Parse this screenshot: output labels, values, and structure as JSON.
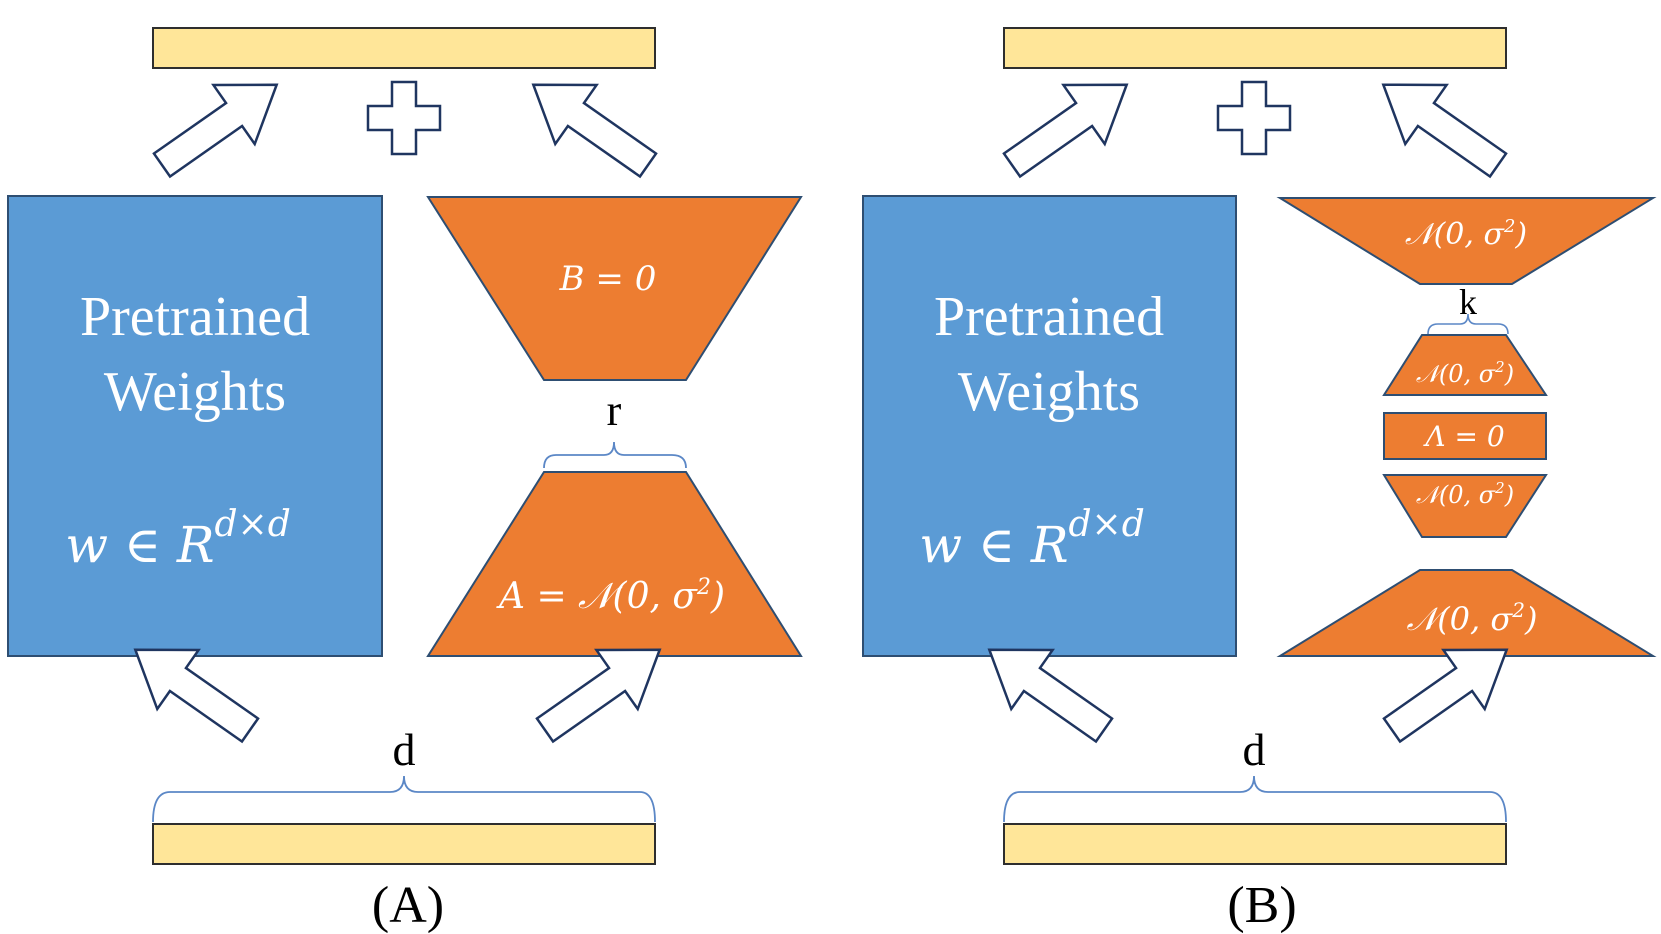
{
  "colors": {
    "blue_fill": "#5B9BD5",
    "blue_stroke": "#2E4E72",
    "orange_fill": "#ED7D31",
    "orange_stroke": "#2E4E72",
    "yellow_fill": "#FFE699",
    "yellow_stroke": "#2E2E2E",
    "arrow_stroke": "#1F3560",
    "brace_stroke": "#5B87C6"
  },
  "panel_a": {
    "pretrained_line1": "Pretrained",
    "pretrained_line2": "Weights",
    "weight_formula": "w ∈ R",
    "weight_exponent": "d×d",
    "top_trapezoid": "B = 0",
    "bottom_trapezoid": "A = 𝒩(0, σ",
    "bottom_trapezoid_exp": "2",
    "bottom_trapezoid_close": ")",
    "rank_label": "r",
    "dim_label": "d",
    "caption": "(A)"
  },
  "panel_b": {
    "pretrained_line1": "Pretrained",
    "pretrained_line2": "Weights",
    "weight_formula": "w ∈ R",
    "weight_exponent": "d×d",
    "top_trapezoid": "𝒩(0, σ",
    "top_trapezoid_exp": "2",
    "top_trapezoid_close": ")",
    "k_label": "k",
    "small_top": "𝒩(0, σ",
    "small_top_exp": "2",
    "small_top_close": ")",
    "lambda_box": "Λ = 0",
    "small_bottom": "𝒩(0, σ",
    "small_bottom_exp": "2",
    "small_bottom_close": ")",
    "bottom_trapezoid": "𝒩(0, σ",
    "bottom_trapezoid_exp": "2",
    "bottom_trapezoid_close": ")",
    "dim_label": "d",
    "caption": "(B)"
  },
  "plus_symbol": "plus-icon",
  "arrow_symbol": "block-arrow-icon"
}
